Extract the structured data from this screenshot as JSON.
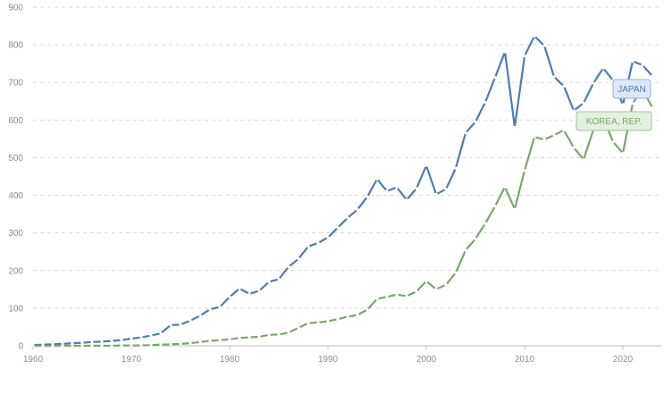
{
  "chart_data": {
    "type": "line",
    "title": "",
    "xlabel": "",
    "ylabel": "",
    "xlim": [
      1960,
      2024
    ],
    "ylim": [
      0,
      900
    ],
    "x_ticks": [
      1960,
      1970,
      1980,
      1990,
      2000,
      2010,
      2020
    ],
    "y_ticks": [
      0,
      100,
      200,
      300,
      400,
      500,
      600,
      700,
      800,
      900
    ],
    "grid": true,
    "legend_placement": "inline-right",
    "x": [
      1960,
      1961,
      1962,
      1963,
      1964,
      1965,
      1966,
      1967,
      1968,
      1969,
      1970,
      1971,
      1972,
      1973,
      1974,
      1975,
      1976,
      1977,
      1978,
      1979,
      1980,
      1981,
      1982,
      1983,
      1984,
      1985,
      1986,
      1987,
      1988,
      1989,
      1990,
      1991,
      1992,
      1993,
      1994,
      1995,
      1996,
      1997,
      1998,
      1999,
      2000,
      2001,
      2002,
      2003,
      2004,
      2005,
      2006,
      2007,
      2008,
      2009,
      2010,
      2011,
      2012,
      2013,
      2014,
      2015,
      2016,
      2017,
      2018,
      2019,
      2020,
      2021,
      2022,
      2023
    ],
    "series": [
      {
        "name": "JAPAN",
        "color": "#4f7bb0",
        "label_fill": "#dde8f6",
        "label_stroke": "#8fb0da",
        "values": [
          2,
          3,
          4,
          5,
          7,
          8,
          10,
          11,
          13,
          15,
          19,
          22,
          27,
          33,
          55,
          56,
          67,
          80,
          97,
          103,
          130,
          152,
          138,
          146,
          170,
          177,
          210,
          231,
          264,
          273,
          288,
          314,
          340,
          362,
          396,
          443,
          411,
          421,
          388,
          418,
          479,
          403,
          416,
          472,
          566,
          595,
          647,
          713,
          781,
          581,
          770,
          823,
          798,
          715,
          690,
          625,
          645,
          698,
          738,
          705,
          641,
          756,
          746,
          717
        ]
      },
      {
        "name": "KOREA, REP.",
        "color": "#78a86a",
        "label_fill": "#e3f0dd",
        "label_stroke": "#9cc590",
        "values": [
          0,
          0,
          0,
          0,
          0,
          0,
          0,
          0,
          0,
          1,
          1,
          1,
          2,
          3,
          4,
          5,
          7,
          10,
          13,
          15,
          17,
          21,
          22,
          24,
          29,
          30,
          35,
          48,
          60,
          62,
          65,
          71,
          77,
          82,
          96,
          125,
          130,
          136,
          132,
          144,
          172,
          150,
          162,
          194,
          254,
          284,
          325,
          371,
          422,
          363,
          466,
          555,
          548,
          560,
          573,
          527,
          495,
          574,
          605,
          542,
          512,
          644,
          683,
          632
        ]
      }
    ]
  }
}
